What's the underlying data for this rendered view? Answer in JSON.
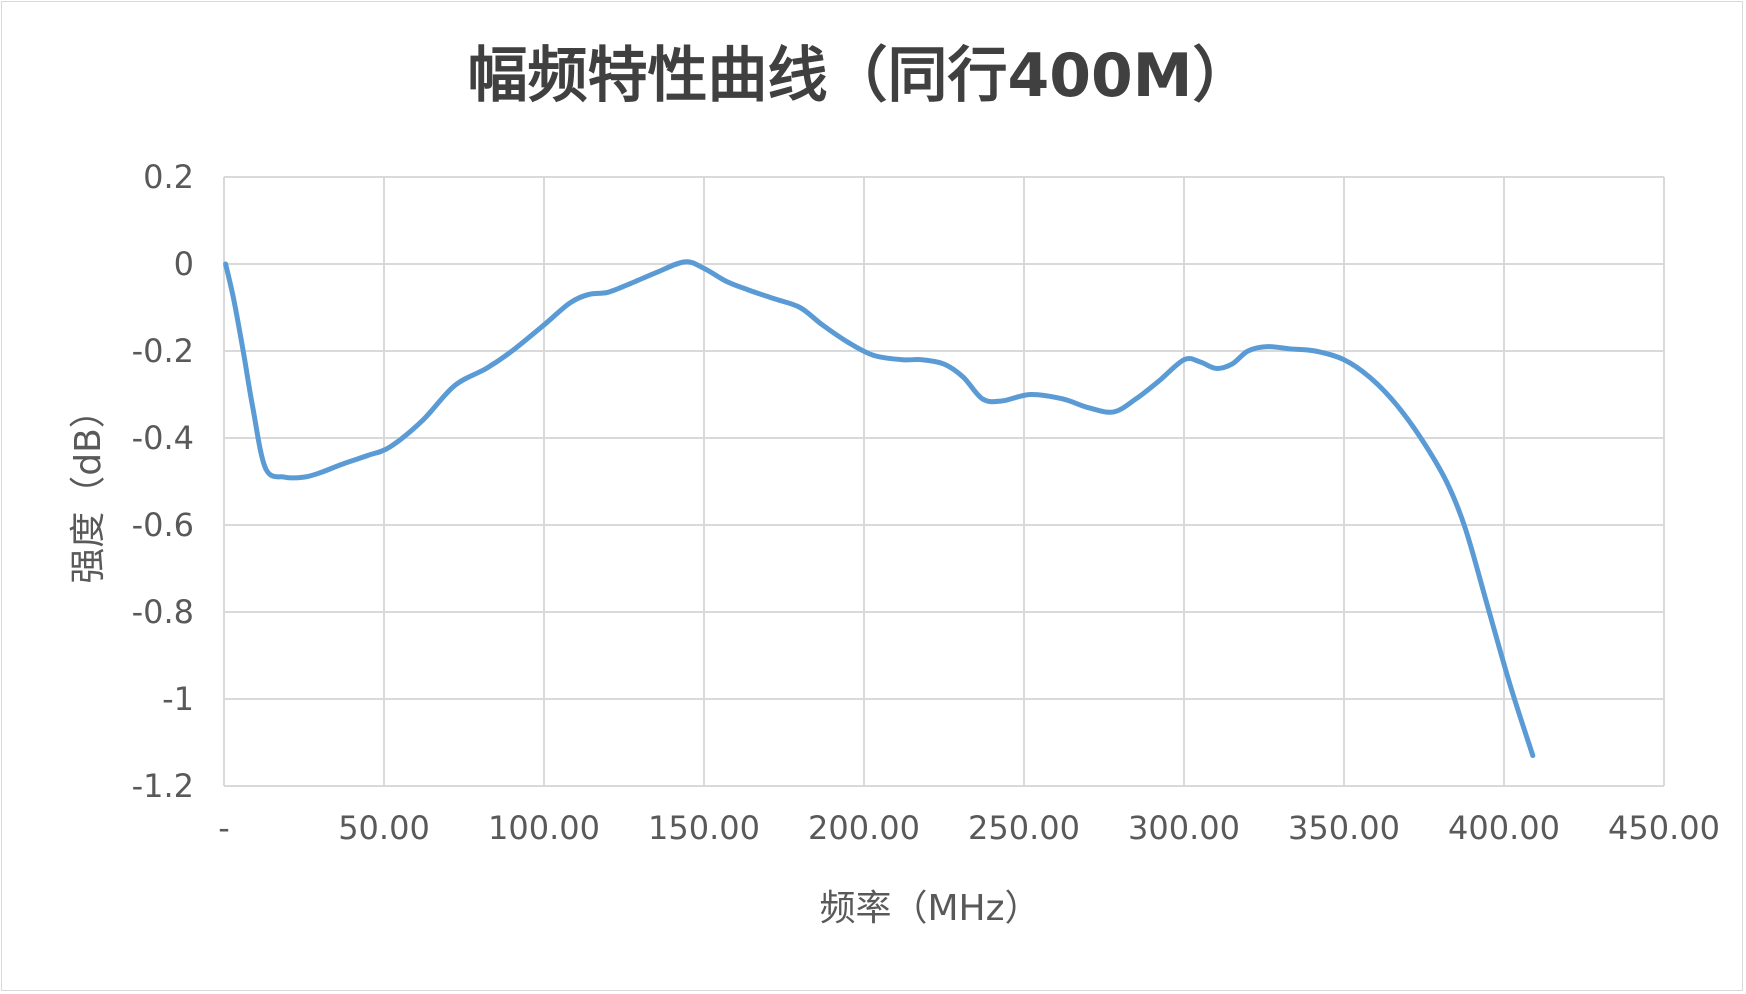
{
  "chart_data": {
    "type": "line",
    "title": "幅频特性曲线（同行400M）",
    "xlabel": "频率（MHz）",
    "ylabel": "强度（dB）",
    "xlim": [
      0,
      450
    ],
    "ylim": [
      -1.2,
      0.2
    ],
    "x_ticks": [
      0,
      50,
      100,
      150,
      200,
      250,
      300,
      350,
      400,
      450
    ],
    "x_tick_labels": [
      "-",
      "50.00",
      "100.00",
      "150.00",
      "200.00",
      "250.00",
      "300.00",
      "350.00",
      "400.00",
      "450.00"
    ],
    "y_ticks": [
      0.2,
      0,
      -0.2,
      -0.4,
      -0.6,
      -0.8,
      -1,
      -1.2
    ],
    "y_tick_labels": [
      "0.2",
      "0",
      "-0.2",
      "-0.4",
      "-0.6",
      "-0.8",
      "-1",
      "-1.2"
    ],
    "grid": true,
    "legend": "none",
    "series": [
      {
        "color": "#5b9bd5",
        "x": [
          0.5,
          3,
          6,
          9,
          13,
          19,
          25,
          30,
          37,
          45,
          52,
          62,
          72,
          82,
          90,
          100,
          108,
          114,
          120,
          127,
          135,
          144,
          150,
          157,
          164,
          172,
          180,
          187,
          195,
          203,
          212,
          218,
          225,
          231,
          237,
          243,
          252,
          262,
          270,
          278,
          285,
          292,
          300,
          305,
          310,
          315,
          320,
          326,
          333,
          341,
          350,
          358,
          366,
          374,
          382,
          388,
          395,
          402,
          409
        ],
        "y": [
          0,
          -0.08,
          -0.2,
          -0.33,
          -0.47,
          -0.49,
          -0.49,
          -0.48,
          -0.46,
          -0.44,
          -0.42,
          -0.36,
          -0.28,
          -0.24,
          -0.2,
          -0.14,
          -0.09,
          -0.07,
          -0.065,
          -0.045,
          -0.02,
          0.005,
          -0.01,
          -0.04,
          -0.06,
          -0.08,
          -0.1,
          -0.14,
          -0.18,
          -0.21,
          -0.22,
          -0.22,
          -0.23,
          -0.26,
          -0.31,
          -0.315,
          -0.3,
          -0.31,
          -0.33,
          -0.34,
          -0.31,
          -0.27,
          -0.22,
          -0.225,
          -0.24,
          -0.23,
          -0.2,
          -0.19,
          -0.195,
          -0.2,
          -0.22,
          -0.26,
          -0.32,
          -0.4,
          -0.5,
          -0.61,
          -0.79,
          -0.97,
          -1.13
        ]
      }
    ]
  }
}
